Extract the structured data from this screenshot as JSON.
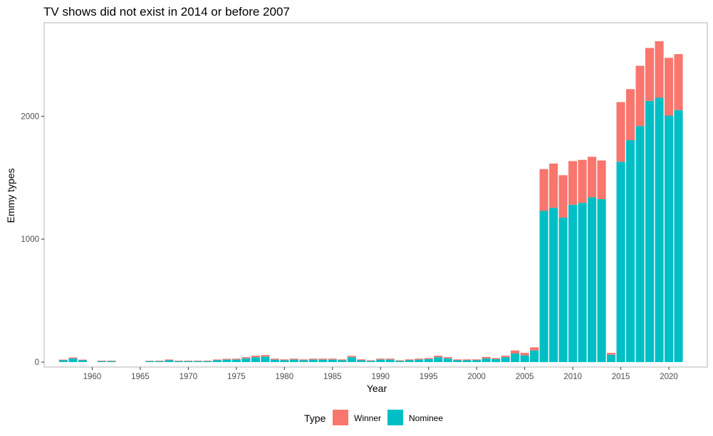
{
  "chart_data": {
    "type": "bar",
    "stacked": true,
    "title": "TV shows did not exist in 2014 or before 2007",
    "xlabel": "Year",
    "ylabel": "Emmy types",
    "xlim": [
      1955,
      2024
    ],
    "ylim": [
      -40,
      2760
    ],
    "x_ticks": [
      1960,
      1965,
      1970,
      1975,
      1980,
      1985,
      1990,
      1995,
      2000,
      2005,
      2010,
      2015,
      2020
    ],
    "y_ticks": [
      0,
      1000,
      2000
    ],
    "grid": false,
    "legend": {
      "title": "Type",
      "position": "bottom"
    },
    "x": [
      1957,
      1958,
      1959,
      1961,
      1962,
      1966,
      1967,
      1968,
      1969,
      1970,
      1971,
      1972,
      1973,
      1974,
      1975,
      1976,
      1977,
      1978,
      1979,
      1980,
      1981,
      1982,
      1983,
      1984,
      1985,
      1986,
      1987,
      1988,
      1989,
      1990,
      1991,
      1992,
      1993,
      1994,
      1995,
      1996,
      1997,
      1998,
      1999,
      2000,
      2001,
      2002,
      2003,
      2004,
      2005,
      2006,
      2007,
      2008,
      2009,
      2010,
      2011,
      2012,
      2013,
      2014,
      2015,
      2016,
      2017,
      2018,
      2019,
      2020,
      2021
    ],
    "series": [
      {
        "name": "Nominee",
        "color": "#00BFC4",
        "values": [
          15,
          30,
          15,
          8,
          8,
          8,
          8,
          15,
          8,
          8,
          8,
          8,
          15,
          20,
          20,
          30,
          40,
          45,
          20,
          15,
          20,
          15,
          20,
          20,
          20,
          15,
          40,
          15,
          10,
          20,
          20,
          10,
          15,
          20,
          25,
          40,
          30,
          15,
          15,
          15,
          30,
          25,
          40,
          70,
          55,
          95,
          1230,
          1255,
          1175,
          1280,
          1295,
          1340,
          1325,
          60,
          1630,
          1805,
          1920,
          2125,
          2150,
          2005,
          2050
        ]
      },
      {
        "name": "Winner",
        "color": "#F8766D",
        "values": [
          5,
          8,
          5,
          4,
          4,
          3,
          4,
          6,
          4,
          4,
          4,
          4,
          6,
          7,
          8,
          10,
          12,
          12,
          8,
          7,
          8,
          7,
          8,
          8,
          8,
          7,
          10,
          7,
          5,
          8,
          8,
          5,
          7,
          8,
          8,
          12,
          10,
          7,
          7,
          7,
          12,
          8,
          12,
          25,
          20,
          25,
          340,
          360,
          345,
          355,
          350,
          330,
          315,
          15,
          485,
          415,
          490,
          430,
          460,
          470,
          455
        ]
      }
    ]
  }
}
